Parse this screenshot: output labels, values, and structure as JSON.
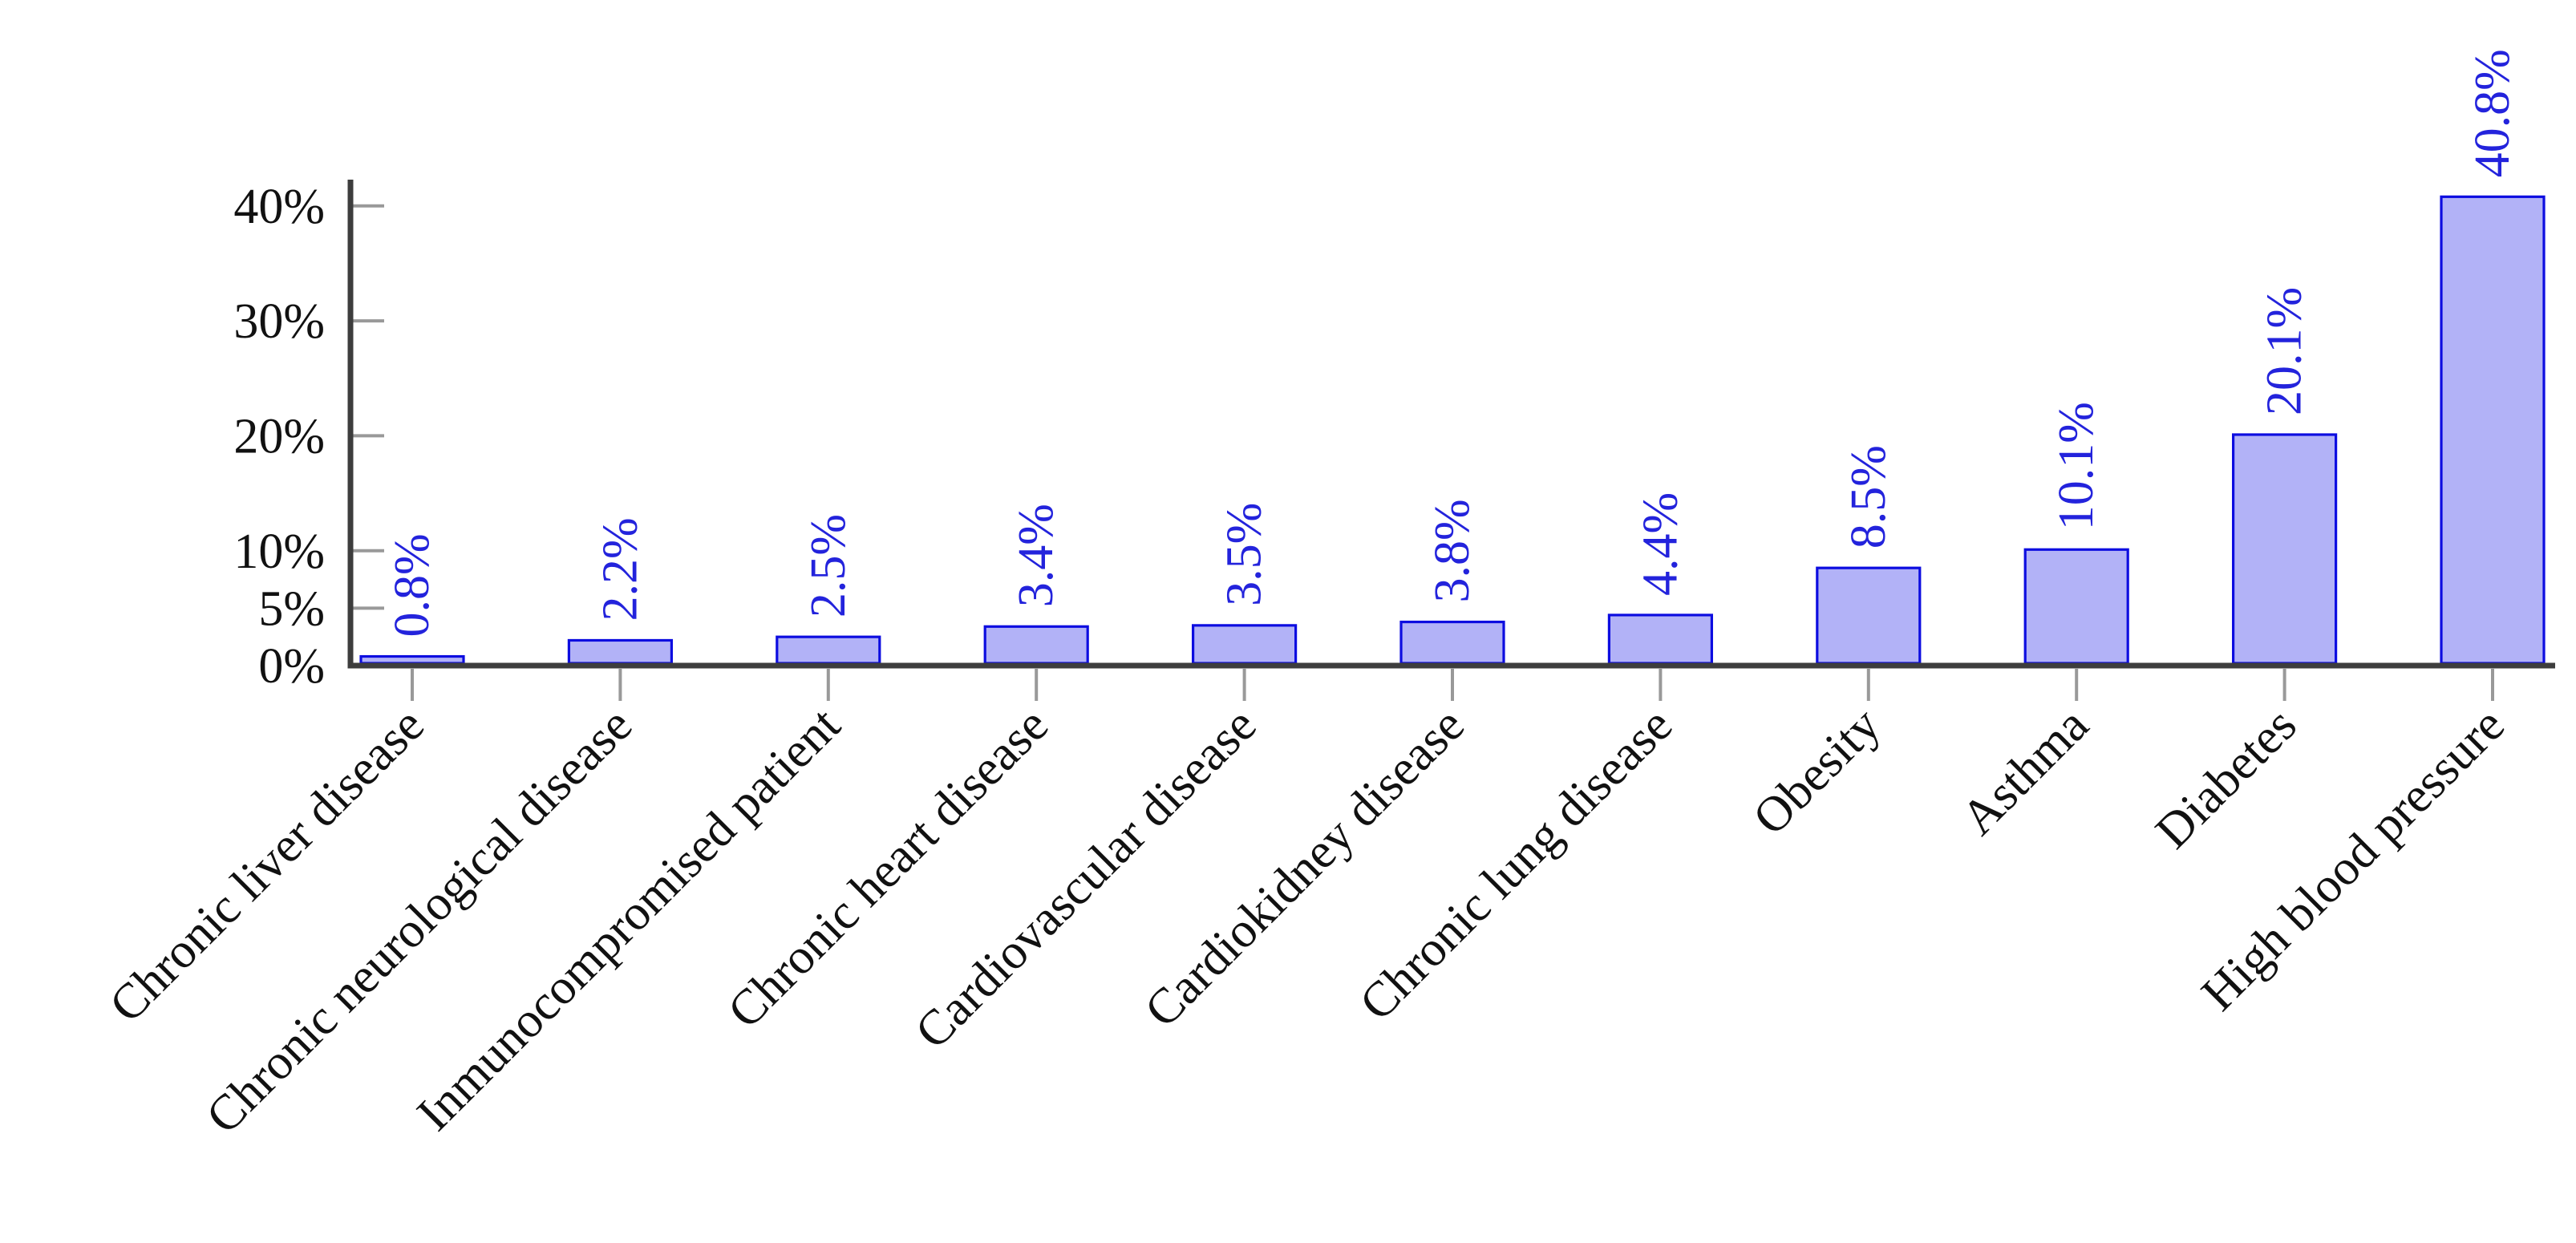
{
  "figure": {
    "background": "#ffffff",
    "description": "Bar chart of comorbidity prevalence percentages"
  },
  "chart_data": {
    "type": "bar",
    "orientation": "vertical",
    "title": "",
    "xlabel": "",
    "ylabel": "",
    "categories": [
      "Chronic liver disease",
      "Chronic neurological disease",
      "Inmunocompromised patient",
      "Chronic heart disease",
      "Cardiovascular disease",
      "Cardiokidney disease",
      "Chronic lung disease",
      "Obesity",
      "Asthma",
      "Diabetes",
      "High blood pressure"
    ],
    "values": [
      0.8,
      2.2,
      2.5,
      3.4,
      3.5,
      3.8,
      4.4,
      8.5,
      10.1,
      20.1,
      40.8
    ],
    "bar_labels": [
      "0.8%",
      "2.2%",
      "2.5%",
      "3.4%",
      "3.5%",
      "3.8%",
      "4.4%",
      "8.5%",
      "10.1%",
      "20.1%",
      "40.8%"
    ],
    "y_ticks": [
      {
        "value": 0,
        "label": "0%"
      },
      {
        "value": 5,
        "label": "5%"
      },
      {
        "value": 10,
        "label": "10%"
      },
      {
        "value": 20,
        "label": "20%"
      },
      {
        "value": 30,
        "label": "30%"
      },
      {
        "value": 40,
        "label": "40%"
      }
    ],
    "ylim": [
      0,
      42.3
    ],
    "grid": false,
    "legend": null,
    "bar_label_rotation_deg": -90,
    "x_tick_label_rotation_deg": -45,
    "colors": {
      "bar_fill": "#b2b2f7",
      "bar_border": "#0d0de0",
      "value_label": "#2323dc",
      "axis_line": "#3d3d3d",
      "tick_mark": "#999999",
      "tick_label": "#111111",
      "background": "#ffffff"
    }
  }
}
